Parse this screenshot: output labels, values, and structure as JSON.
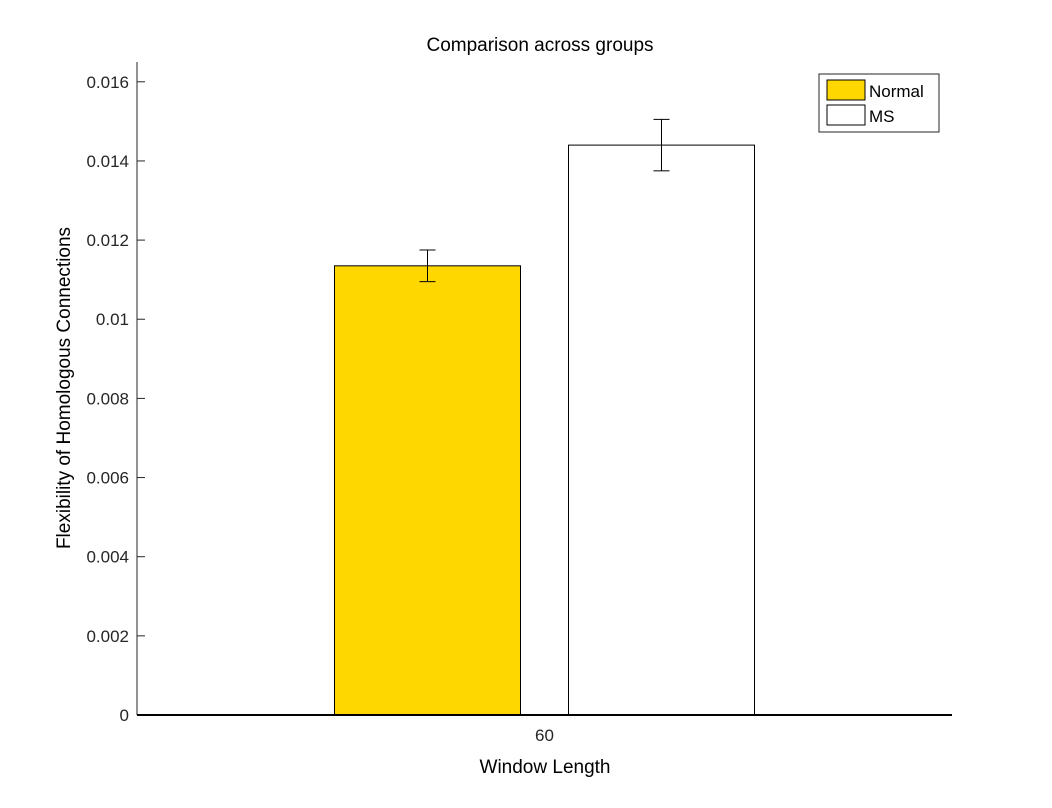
{
  "chart_data": {
    "type": "bar",
    "title": "Comparison across groups",
    "xlabel": "Window Length",
    "ylabel": "Flexibility of Homologous Connections",
    "categories": [
      "60"
    ],
    "series": [
      {
        "name": "Normal",
        "values": [
          0.01135
        ],
        "error": [
          0.0004
        ],
        "color": "#FFD700"
      },
      {
        "name": "MS",
        "values": [
          0.0144
        ],
        "error": [
          0.00065
        ],
        "color": "#FFFFFF"
      }
    ],
    "ylim": [
      0,
      0.0165
    ],
    "yticks": [
      "0",
      "0.002",
      "0.004",
      "0.006",
      "0.008",
      "0.01",
      "0.012",
      "0.014",
      "0.016"
    ],
    "ytick_values": [
      0,
      0.002,
      0.004,
      0.006,
      0.008,
      0.01,
      0.012,
      0.014,
      0.016
    ],
    "grid": false,
    "legend_position": "top-right",
    "colors": {
      "normal": "#FFD700",
      "ms": "#FFFFFF",
      "edge": "#000000"
    }
  }
}
